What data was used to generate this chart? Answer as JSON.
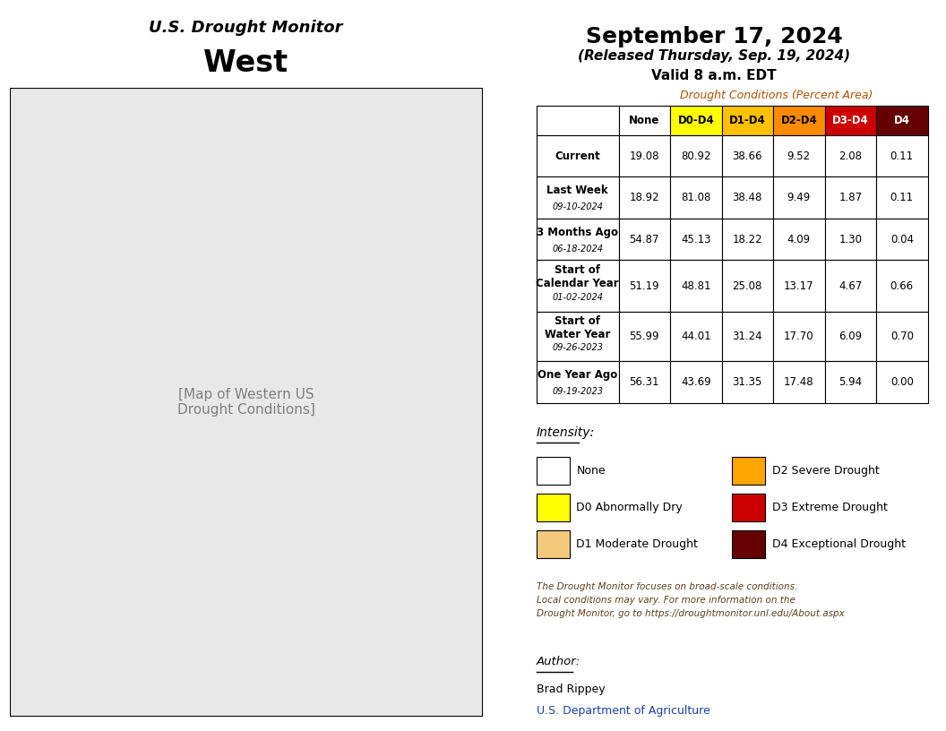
{
  "title_line1": "U.S. Drought Monitor",
  "title_line2": "West",
  "date_main": "September 17, 2024",
  "date_released": "(Released Thursday, Sep. 19, 2024)",
  "date_valid": "Valid 8 a.m. EDT",
  "table_title": "Drought Conditions (Percent Area)",
  "col_headers": [
    "None",
    "D0-D4",
    "D1-D4",
    "D2-D4",
    "D3-D4",
    "D4"
  ],
  "col_colors": [
    "#ffffff",
    "#ffff00",
    "#ffc000",
    "#ff8c00",
    "#cc0000",
    "#660000"
  ],
  "col_text_colors": [
    "#000000",
    "#000000",
    "#000000",
    "#000000",
    "#ffffff",
    "#ffffff"
  ],
  "row_labels": [
    [
      "Current",
      ""
    ],
    [
      "Last Week",
      "09-10-2024"
    ],
    [
      "3 Months Ago",
      "06-18-2024"
    ],
    [
      "Start of\nCalendar Year",
      "01-02-2024"
    ],
    [
      "Start of\nWater Year",
      "09-26-2023"
    ],
    [
      "One Year Ago",
      "09-19-2023"
    ]
  ],
  "table_data": [
    [
      19.08,
      80.92,
      38.66,
      9.52,
      2.08,
      0.11
    ],
    [
      18.92,
      81.08,
      38.48,
      9.49,
      1.87,
      0.11
    ],
    [
      54.87,
      45.13,
      18.22,
      4.09,
      1.3,
      0.04
    ],
    [
      51.19,
      48.81,
      25.08,
      13.17,
      4.67,
      0.66
    ],
    [
      55.99,
      44.01,
      31.24,
      17.7,
      6.09,
      0.7
    ],
    [
      56.31,
      43.69,
      31.35,
      17.48,
      5.94,
      0.0
    ]
  ],
  "legend_items": [
    {
      "label": "None",
      "color": "#ffffff",
      "text_color": "#000000"
    },
    {
      "label": "D0 Abnormally Dry",
      "color": "#ffff00",
      "text_color": "#000000"
    },
    {
      "label": "D1 Moderate Drought",
      "color": "#f5c97c",
      "text_color": "#000000"
    },
    {
      "label": "D2 Severe Drought",
      "color": "#ffa500",
      "text_color": "#000000"
    },
    {
      "label": "D3 Extreme Drought",
      "color": "#cc0000",
      "text_color": "#ffffff"
    },
    {
      "label": "D4 Exceptional Drought",
      "color": "#660000",
      "text_color": "#ffffff"
    }
  ],
  "disclaimer": "The Drought Monitor focuses on broad-scale conditions.\nLocal conditions may vary. For more information on the\nDrought Monitor, go to https://droughtmonitor.unl.edu/About.aspx",
  "author_label": "Author:",
  "author_name": "Brad Rippey",
  "author_org": "U.S. Department of Agriculture",
  "website": "droughtmonitor.unl.edu",
  "background_color": "#ffffff",
  "map_placeholder_color": "#e8e8e8"
}
